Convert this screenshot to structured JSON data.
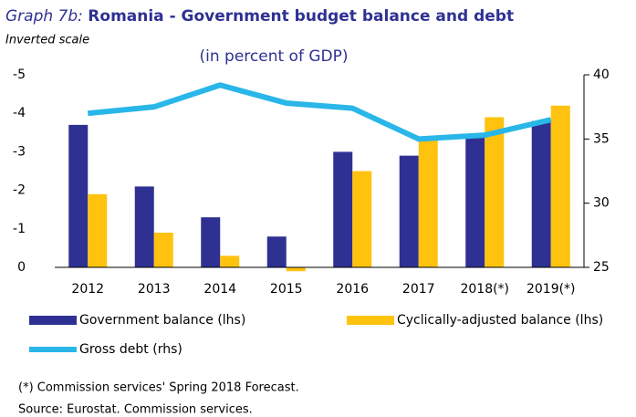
{
  "chart_data": {
    "type": "bar",
    "title_prefix": "Graph 7b:",
    "title": "Romania - Government budget balance and debt",
    "subtitle": "(in percent of GDP)",
    "annotation": "Inverted scale",
    "categories": [
      "2012",
      "2013",
      "2014",
      "2015",
      "2016",
      "2017",
      "2018(*)",
      "2019(*)"
    ],
    "series": [
      {
        "name": "Government balance (lhs)",
        "type": "bar",
        "color": "#2e3192",
        "values": [
          -3.7,
          -2.1,
          -1.3,
          -0.8,
          -3.0,
          -2.9,
          -3.4,
          -3.8
        ]
      },
      {
        "name": "Cyclically-adjusted balance (lhs)",
        "type": "bar",
        "color": "#ffc20e",
        "values": [
          -1.9,
          -0.9,
          -0.3,
          0.1,
          -2.5,
          -3.3,
          -3.9,
          -4.2
        ]
      },
      {
        "name": "Gross debt (rhs)",
        "type": "line",
        "axis": "y2",
        "color": "#29b6e8",
        "values": [
          37.0,
          37.5,
          39.2,
          37.8,
          37.4,
          35.0,
          35.3,
          36.5
        ]
      }
    ],
    "ylim": [
      0,
      -5
    ],
    "yticks": [
      -5,
      -4,
      -3,
      -2,
      -1,
      0
    ],
    "y2lim": [
      25,
      40
    ],
    "y2ticks": [
      25,
      30,
      35,
      40
    ],
    "footnotes": [
      "(*) Commission services' Spring 2018 Forecast.",
      "Source: Eurostat. Commission services."
    ]
  }
}
